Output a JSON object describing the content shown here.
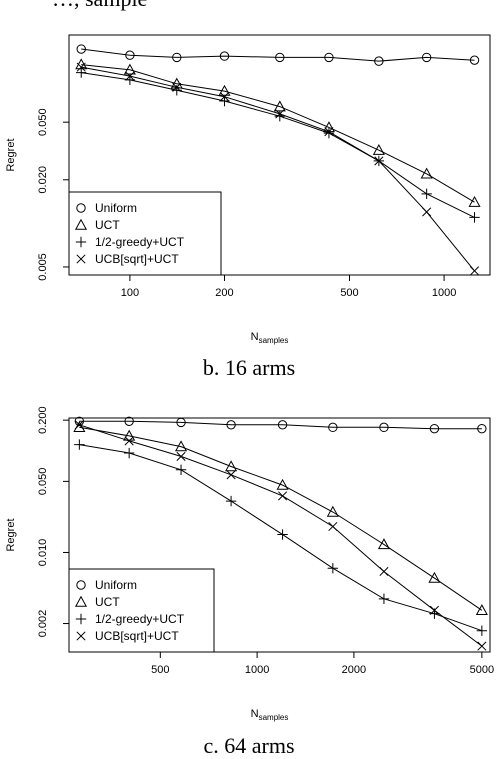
{
  "top_caption": "…, sample",
  "chart_data": [
    {
      "type": "line",
      "caption": "b. 16 arms",
      "xlabel": "N",
      "xlabel_sub": "samples",
      "ylabel": "Regret",
      "xscale": "log",
      "yscale": "log",
      "xlim": [
        64,
        1400
      ],
      "ylim": [
        0.0044,
        0.2
      ],
      "xticks": [
        100,
        200,
        500,
        1000
      ],
      "xtick_labels": [
        "100",
        "200",
        "500",
        "1000"
      ],
      "yticks": [
        0.005,
        0.02,
        0.05
      ],
      "ytick_labels": [
        "0.005",
        "0.020",
        "0.050"
      ],
      "grid": false,
      "legend_position": "bottom-left",
      "x": [
        70,
        100,
        141,
        200,
        300,
        430,
        620,
        880,
        1250
      ],
      "series": [
        {
          "name": "Uniform",
          "marker": "circle",
          "values": [
            0.16,
            0.145,
            0.14,
            0.143,
            0.14,
            0.14,
            0.132,
            0.14,
            0.134
          ]
        },
        {
          "name": "UCT",
          "marker": "triangle",
          "values": [
            0.125,
            0.115,
            0.092,
            0.082,
            0.064,
            0.046,
            0.032,
            0.022,
            0.014
          ]
        },
        {
          "name": "1/2-greedy+UCT",
          "marker": "plus",
          "values": [
            0.11,
            0.098,
            0.083,
            0.07,
            0.055,
            0.042,
            0.027,
            0.016,
            0.011
          ]
        },
        {
          "name": "UCB[sqrt]+UCT",
          "marker": "x",
          "values": [
            0.12,
            0.104,
            0.087,
            0.075,
            0.057,
            0.043,
            0.027,
            0.012,
            0.0047
          ]
        }
      ]
    },
    {
      "type": "line",
      "caption": "c. 64 arms",
      "xlabel": "N",
      "xlabel_sub": "samples",
      "ylabel": "Regret",
      "xscale": "log",
      "yscale": "log",
      "xlim": [
        260,
        5300
      ],
      "ylim": [
        0.00105,
        0.21
      ],
      "xticks": [
        500,
        1000,
        2000,
        5000
      ],
      "xtick_labels": [
        "500",
        "1000",
        "2000",
        "5000"
      ],
      "yticks": [
        0.002,
        0.01,
        0.05,
        0.2
      ],
      "ytick_labels": [
        "0.002",
        "0.010",
        "0.050",
        "0.200"
      ],
      "grid": false,
      "legend_position": "bottom-left",
      "x": [
        280,
        400,
        580,
        830,
        1200,
        1720,
        2480,
        3560,
        5000
      ],
      "series": [
        {
          "name": "Uniform",
          "marker": "circle",
          "values": [
            0.195,
            0.195,
            0.19,
            0.18,
            0.18,
            0.17,
            0.17,
            0.165,
            0.165
          ]
        },
        {
          "name": "UCT",
          "marker": "triangle",
          "values": [
            0.17,
            0.14,
            0.11,
            0.07,
            0.046,
            0.025,
            0.012,
            0.0056,
            0.0027
          ]
        },
        {
          "name": "1/2-greedy+UCT",
          "marker": "plus",
          "values": [
            0.115,
            0.095,
            0.065,
            0.032,
            0.015,
            0.007,
            0.0035,
            0.0025,
            0.0017
          ]
        },
        {
          "name": "UCB[sqrt]+UCT",
          "marker": "x",
          "values": [
            0.18,
            0.125,
            0.088,
            0.058,
            0.036,
            0.018,
            0.0065,
            0.0027,
            0.0012
          ]
        }
      ]
    }
  ]
}
